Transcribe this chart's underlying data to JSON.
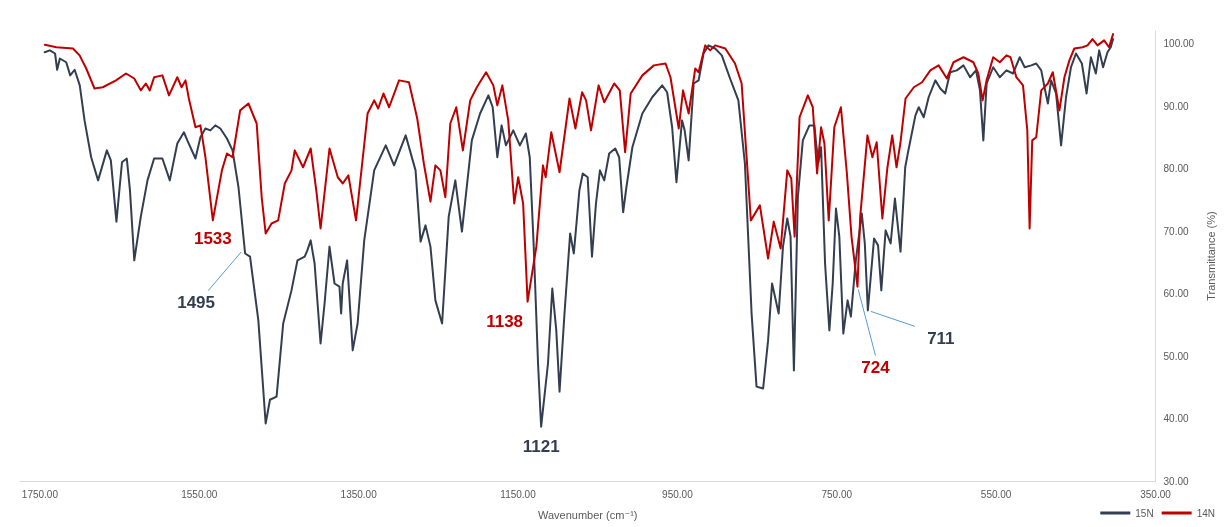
{
  "chart_data": {
    "type": "line",
    "xlabel": "Wavenumber (cm⁻¹)",
    "ylabel": "Transmittance (%)",
    "xlim": [
      1775,
      350
    ],
    "xticks": [
      {
        "value": 1750,
        "label": "1750.00"
      },
      {
        "value": 1550,
        "label": "1550.00"
      },
      {
        "value": 1350,
        "label": "1350.00"
      },
      {
        "value": 1150,
        "label": "1150.00"
      },
      {
        "value": 950,
        "label": "950.00"
      },
      {
        "value": 750,
        "label": "750.00"
      },
      {
        "value": 550,
        "label": "550.00"
      },
      {
        "value": 350,
        "label": "350.00"
      }
    ],
    "ylim": [
      30,
      102
    ],
    "yticks": [
      {
        "value": 30,
        "label": "30.00"
      },
      {
        "value": 40,
        "label": "40.00"
      },
      {
        "value": 50,
        "label": "50.00"
      },
      {
        "value": 60,
        "label": "60.00"
      },
      {
        "value": 70,
        "label": "70.00"
      },
      {
        "value": 80,
        "label": "80.00"
      },
      {
        "value": 90,
        "label": "90.00"
      },
      {
        "value": 100,
        "label": "100.00"
      }
    ],
    "grid": false,
    "legend": "bottom right",
    "series": [
      {
        "name": "15N",
        "color": "#333f50",
        "x": [
          1744,
          1737.6,
          1731,
          1728.4,
          1725,
          1717,
          1712,
          1706.4,
          1700,
          1694,
          1685.7,
          1677,
          1666,
          1661,
          1654,
          1647,
          1641,
          1637,
          1631.6,
          1623.4,
          1615,
          1606.7,
          1596.3,
          1587,
          1577.6,
          1569.3,
          1565,
          1554.8,
          1548.6,
          1542.3,
          1536.1,
          1529.9,
          1523.6,
          1515.3,
          1508.3,
          1500.8,
          1492.5,
          1486.3,
          1475.9,
          1466.7,
          1461.3,
          1453,
          1444.7,
          1434.3,
          1426.8,
          1417.7,
          1414.4,
          1410.2,
          1405.3,
          1397.8,
          1392.8,
          1386.6,
          1380.3,
          1374.1,
          1372,
          1370,
          1364.5,
          1357.5,
          1351.3,
          1343,
          1330.5,
          1316,
          1305.6,
          1291,
          1278.6,
          1272.3,
          1266.1,
          1259.9,
          1253.7,
          1245.3,
          1237,
          1228.7,
          1220.4,
          1208,
          1197.6,
          1187.2,
          1181.8,
          1176,
          1170.6,
          1165.2,
          1156,
          1147.7,
          1140.2,
          1135.3,
          1130.3,
          1124.9,
          1121,
          1112.4,
          1107,
          1102,
          1097.9,
          1091.7,
          1084.6,
          1080,
          1073,
          1068.8,
          1062.6,
          1057.2,
          1052.2,
          1047.2,
          1041.8,
          1035.6,
          1028,
          1023.1,
          1018.1,
          1014,
          1006.5,
          994,
          981.6,
          969.1,
          962.9,
          956.6,
          951.2,
          944.2,
          940.9,
          935.9,
          929.6,
          923.4,
          917.2,
          910.9,
          902.6,
          894.3,
          883.9,
          873.5,
          865.3,
          856.9,
          850.7,
          842.4,
          836.2,
          831.2,
          822.9,
          817.5,
          812.1,
          808,
          803.8,
          798.8,
          792.6,
          784.3,
          778,
          775.9,
          773,
          769.7,
          764.7,
          759.3,
          755.1,
          751,
          746.8,
          741.8,
          736.4,
          732.3,
          726.1,
          718.6,
          714.8,
          711,
          703.2,
          698.2,
          694.1,
          688.7,
          682.4,
          677,
          670,
          664.1,
          660.6,
          651.3,
          647.1,
          640.9,
          634.7,
          626.3,
          620.1,
          613.9,
          607.7,
          599.3,
          591,
          582.7,
          575.3,
          570.3,
          566.1,
          561.9,
          553.7,
          545.4,
          537.1,
          528.8,
          520.4,
          514.2,
          505.9,
          499.7,
          493.4,
          489.3,
          485.1,
          481,
          474.8,
          468.5,
          462.3,
          456.1,
          449.8,
          442.4,
          436.5,
          431.1,
          424.9,
          420.7,
          415.8,
          410.3,
          406.2,
          403.3
        ],
        "values": [
          98.6,
          98.9,
          98.4,
          95.8,
          97.6,
          97.0,
          94.9,
          95.8,
          93.3,
          87.7,
          81.8,
          78.1,
          82.9,
          81.3,
          71.5,
          81.0,
          81.6,
          76.5,
          65.3,
          72.3,
          78.1,
          81.6,
          81.6,
          78.1,
          84.0,
          85.8,
          84.5,
          81.6,
          85.0,
          86.4,
          86.1,
          86.9,
          86.4,
          84.8,
          82.9,
          77.0,
          66.4,
          65.9,
          55.7,
          39.2,
          43.0,
          43.5,
          55.2,
          60.5,
          65.3,
          65.9,
          66.9,
          68.5,
          64.8,
          52.0,
          58.4,
          67.5,
          61.6,
          61.1,
          56.8,
          61.6,
          65.3,
          50.9,
          55.2,
          68.5,
          79.7,
          83.7,
          80.5,
          85.3,
          79.7,
          68.3,
          70.9,
          67.5,
          58.9,
          55.2,
          72.3,
          78.1,
          69.9,
          84.5,
          88.8,
          91.7,
          89.8,
          81.8,
          86.9,
          83.7,
          86.1,
          83.7,
          85.6,
          81.8,
          67.5,
          48.8,
          38.7,
          48.8,
          60.8,
          54.1,
          44.3,
          56.8,
          69.6,
          66.4,
          76.5,
          79.2,
          78.6,
          65.9,
          74.4,
          79.7,
          78.1,
          82.4,
          83.2,
          81.8,
          73.0,
          77.0,
          83.4,
          88.8,
          91.4,
          93.3,
          92.2,
          86.6,
          77.8,
          87.7,
          86.1,
          81.3,
          93.6,
          94.1,
          98.4,
          99.7,
          99.2,
          98.1,
          94.4,
          90.9,
          80.8,
          56.8,
          45.1,
          44.8,
          52.5,
          61.6,
          56.8,
          67.5,
          72.0,
          69.1,
          47.7,
          75.5,
          84.5,
          86.9,
          86.9,
          84.0,
          81.0,
          83.4,
          64.8,
          54.1,
          61.6,
          73.6,
          69.1,
          53.6,
          58.9,
          56.3,
          65.3,
          72.8,
          68.0,
          57.3,
          68.8,
          67.7,
          60.5,
          70.1,
          68.0,
          75.2,
          66.7,
          80.2,
          82.6,
          88.5,
          89.8,
          88.2,
          91.4,
          94.1,
          92.8,
          92.0,
          95.4,
          95.7,
          96.5,
          94.6,
          95.7,
          92.5,
          84.5,
          93.6,
          96.2,
          94.6,
          95.7,
          95.2,
          97.8,
          96.2,
          96.5,
          96.8,
          95.7,
          93.0,
          90.4,
          94.1,
          92.0,
          83.7,
          91.4,
          96.2,
          98.4,
          96.8,
          92.0,
          97.8,
          95.2,
          98.9,
          96.2,
          98.6,
          99.4,
          100.7
        ]
      },
      {
        "name": "14N",
        "color": "#c00000",
        "x": [
          1743.8,
          1729.3,
          1708.5,
          1700.2,
          1691.9,
          1681.5,
          1671.1,
          1654.5,
          1642,
          1631.6,
          1623.4,
          1617.1,
          1612.1,
          1606.7,
          1596.3,
          1588,
          1577.6,
          1572.2,
          1567.3,
          1563.1,
          1554.8,
          1548.6,
          1542.3,
          1533,
          1521.6,
          1515.3,
          1508.3,
          1498.7,
          1488.3,
          1478,
          1471.7,
          1466.7,
          1459.3,
          1451,
          1442.7,
          1434.3,
          1430.2,
          1419.8,
          1410.2,
          1403.2,
          1397.8,
          1386.6,
          1376.2,
          1369.9,
          1362.9,
          1353.3,
          1338.8,
          1330.5,
          1325.5,
          1318.9,
          1311.8,
          1299.3,
          1286.9,
          1276.5,
          1268.2,
          1259.9,
          1253.7,
          1247.4,
          1241.2,
          1235,
          1227.5,
          1219.2,
          1210,
          1201.7,
          1190.1,
          1181,
          1176,
          1169.7,
          1162.3,
          1154.8,
          1149.8,
          1143.6,
          1138,
          1127,
          1118.7,
          1115.3,
          1108.3,
          1097.9,
          1085.4,
          1078,
          1069.6,
          1064.6,
          1058.4,
          1048.9,
          1041.8,
          1029.3,
          1022.3,
          1015.6,
          1008.6,
          994,
          979.5,
          964.9,
          958.7,
          948.3,
          942.9,
          935.9,
          927.6,
          923.4,
          915.1,
          908.9,
          902.6,
          889.9,
          877.7,
          869.4,
          857.8,
          846.5,
          836.2,
          829.1,
          820.4,
          812.1,
          807.1,
          802.9,
          796.7,
          786.3,
          780.1,
          774.7,
          769.7,
          765.5,
          760.1,
          753.1,
          744.8,
          737.3,
          731.5,
          724,
          720.6,
          711.5,
          705.3,
          699.9,
          692.8,
          686.6,
          680.4,
          675,
          670,
          663.7,
          653.3,
          643,
          632.6,
          622.2,
          611.8,
          603.5,
          591,
          578.6,
          572.4,
          567,
          562,
          553.7,
          545.4,
          537.1,
          532,
          524.6,
          516.3,
          510.9,
          508,
          504.7,
          499.7,
          493.4,
          485.1,
          478.9,
          470.6,
          464.3,
          458.1,
          451.9,
          441.5,
          435.3,
          429.1,
          422.8,
          414.5,
          408.3,
          403.3
        ],
        "values": [
          99.8,
          99.4,
          99.2,
          98.1,
          96.0,
          92.8,
          93.0,
          94.1,
          95.2,
          94.4,
          92.5,
          93.6,
          92.5,
          94.6,
          94.9,
          91.7,
          94.6,
          93.0,
          94.1,
          91.2,
          86.6,
          86.9,
          81.8,
          71.7,
          79.7,
          82.4,
          81.8,
          89.3,
          90.4,
          87.2,
          75.4,
          69.6,
          71.2,
          71.7,
          77.6,
          79.7,
          82.9,
          80.2,
          83.2,
          76.5,
          70.4,
          83.2,
          78.6,
          77.6,
          78.9,
          71.7,
          88.8,
          90.9,
          89.6,
          92.0,
          89.8,
          94.1,
          93.8,
          88.0,
          80.8,
          74.7,
          80.5,
          79.7,
          75.4,
          87.2,
          89.8,
          82.9,
          90.9,
          93.0,
          95.4,
          93.3,
          90.1,
          93.3,
          87.7,
          74.4,
          78.6,
          74.4,
          58.7,
          67.5,
          80.5,
          78.6,
          85.8,
          79.4,
          91.2,
          86.4,
          92.2,
          90.9,
          86.1,
          93.3,
          90.6,
          93.6,
          92.5,
          82.6,
          92.0,
          94.9,
          96.5,
          96.8,
          94.6,
          86.4,
          92.5,
          88.8,
          96.0,
          95.4,
          99.7,
          98.9,
          99.7,
          99.2,
          96.8,
          93.6,
          71.7,
          74.1,
          65.6,
          71.5,
          67.2,
          79.7,
          78.4,
          69.1,
          88.2,
          91.7,
          89.8,
          79.2,
          86.6,
          84.0,
          71.7,
          86.6,
          89.8,
          79.2,
          69.1,
          61.1,
          72.3,
          85.3,
          81.8,
          84.2,
          72.0,
          80.0,
          85.3,
          80.2,
          84.2,
          91.2,
          93.0,
          93.8,
          95.7,
          96.5,
          94.4,
          97.0,
          97.8,
          97.0,
          95.2,
          90.9,
          94.1,
          97.8,
          97.0,
          98.1,
          97.8,
          94.6,
          93.3,
          86.1,
          70.4,
          84.5,
          85.0,
          92.5,
          93.6,
          95.4,
          89.3,
          94.6,
          97.3,
          99.2,
          99.4,
          99.7,
          100.7,
          99.7,
          100.5,
          99.4,
          101.5
        ]
      }
    ],
    "annotations": [
      {
        "text": "1533",
        "x": 1533,
        "y": 71.7
      },
      {
        "text": "1495",
        "x": 1495,
        "y": 67
      },
      {
        "text": "1138",
        "x": 1138,
        "y": 58.7
      },
      {
        "text": "1121",
        "x": 1121,
        "y": 38.7
      },
      {
        "text": "724",
        "x": 724,
        "y": 61.1
      },
      {
        "text": "711",
        "x": 711,
        "y": 57.3
      }
    ]
  }
}
